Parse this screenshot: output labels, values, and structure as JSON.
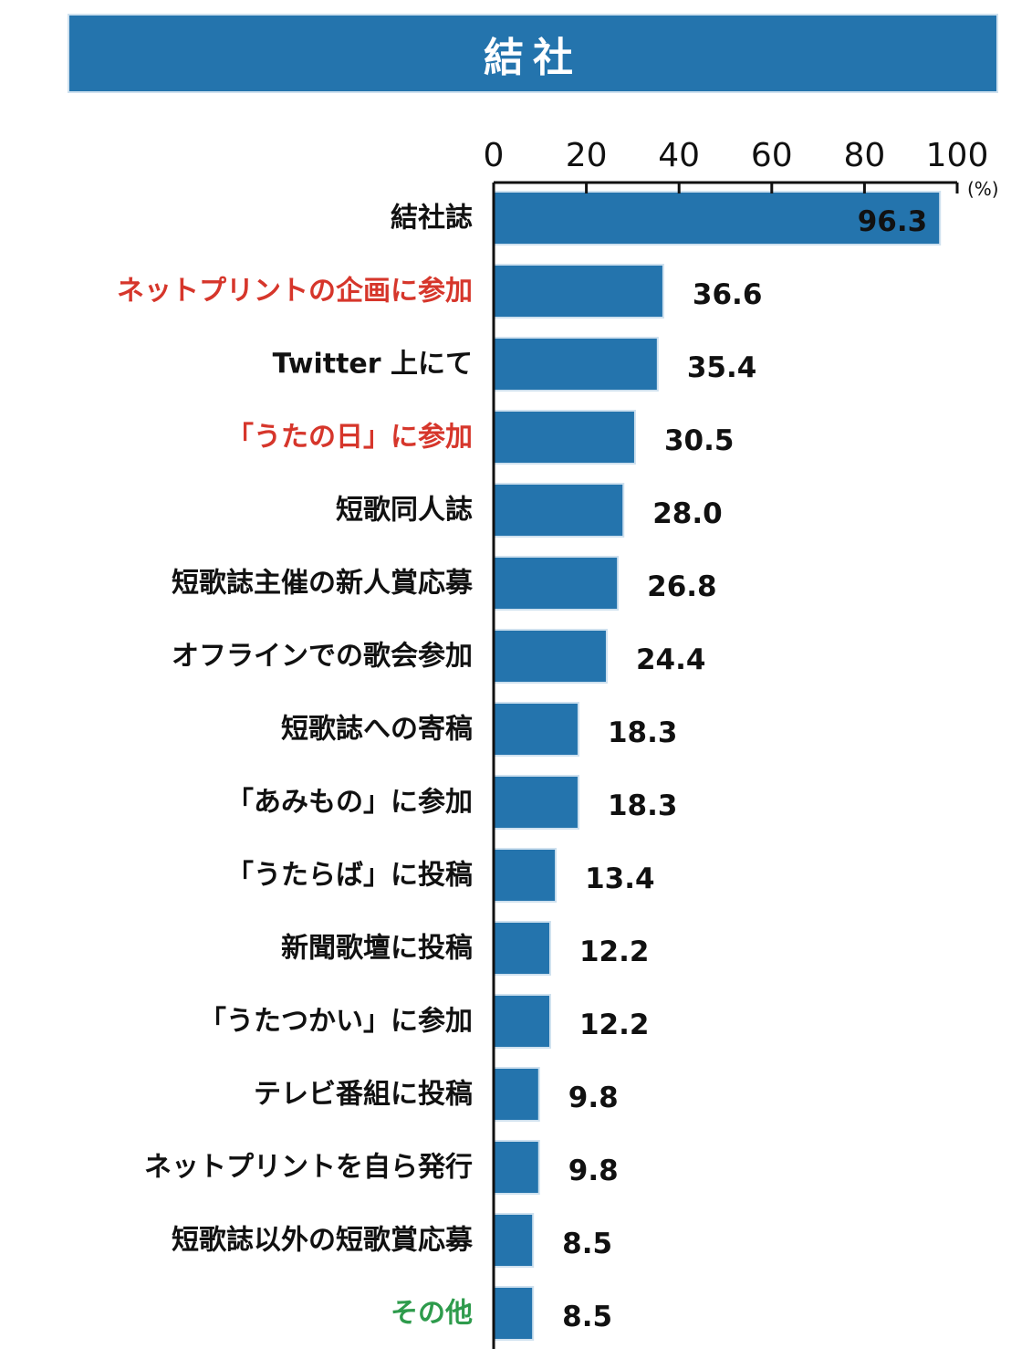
{
  "title": "結社",
  "colors": {
    "bar": "#2474ad",
    "bar_stroke": "#cfe1ef",
    "axis": "#111111",
    "label_default": "#111111",
    "label_red": "#d6362b",
    "label_green": "#2e9b4c",
    "value_inside": "#ffffff"
  },
  "chart_data": {
    "type": "bar",
    "orientation": "horizontal",
    "title": "結社",
    "unit": "(%)",
    "xlim": [
      0,
      100
    ],
    "xticks": [
      0,
      20,
      40,
      60,
      80,
      100
    ],
    "grid": false,
    "categories": [
      "結社誌",
      "ネットプリントの企画に参加",
      "Twitter 上にて",
      "「うたの日」に参加",
      "短歌同人誌",
      "短歌誌主催の新人賞応募",
      "オフラインでの歌会参加",
      "短歌誌への寄稿",
      "「あみもの」に参加",
      "「うたらば」に投稿",
      "新聞歌壇に投稿",
      "「うたつかい」に参加",
      "テレビ番組に投稿",
      "ネットプリントを自ら発行",
      "短歌誌以外の短歌賞応募",
      "その他"
    ],
    "values": [
      96.3,
      36.6,
      35.4,
      30.5,
      28.0,
      26.8,
      24.4,
      18.3,
      18.3,
      13.4,
      12.2,
      12.2,
      9.8,
      9.8,
      8.5,
      8.5
    ],
    "value_labels": [
      "96.3",
      "36.6",
      "35.4",
      "30.5",
      "28.0",
      "26.8",
      "24.4",
      "18.3",
      "18.3",
      "13.4",
      "12.2",
      "12.2",
      "9.8",
      "9.8",
      "8.5",
      "8.5"
    ],
    "label_colors": [
      "default",
      "red",
      "default",
      "red",
      "default",
      "default",
      "default",
      "default",
      "default",
      "default",
      "default",
      "default",
      "default",
      "default",
      "default",
      "green"
    ]
  }
}
